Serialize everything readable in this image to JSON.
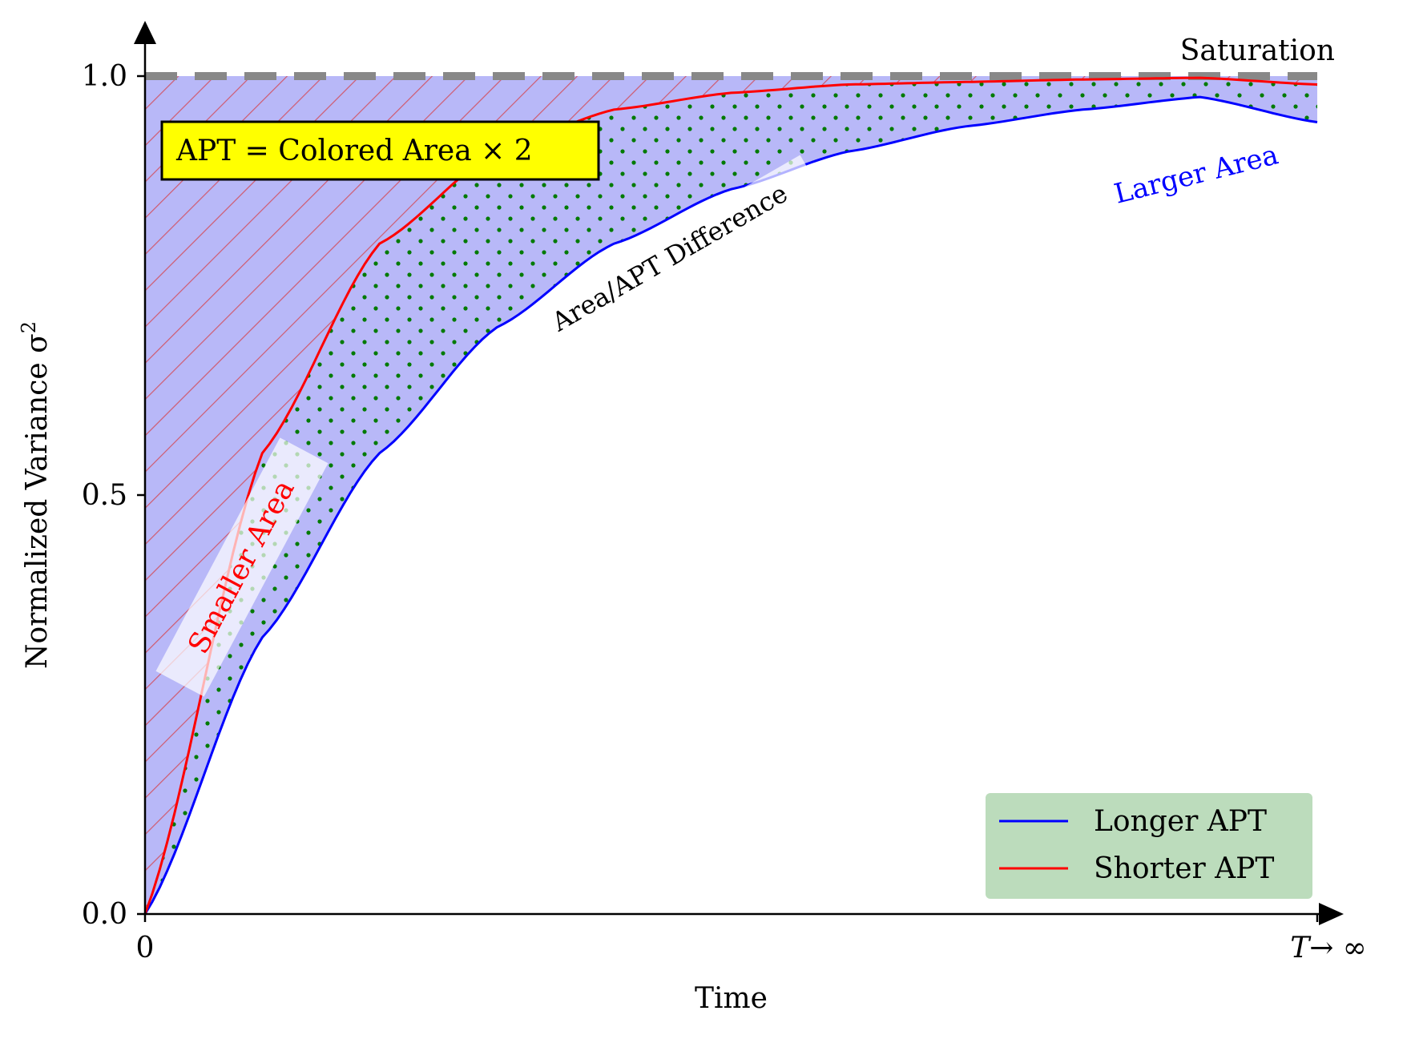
{
  "chart_data": {
    "type": "line",
    "xlabel": "Time",
    "ylabel": "Normalized Variance σ",
    "ylabel_sup": "2",
    "ylim": [
      0,
      1.0
    ],
    "xlim": [
      0,
      1
    ],
    "x_ticks": [
      {
        "value": 0,
        "label": "0"
      },
      {
        "value": 1,
        "label": "T → ∞"
      }
    ],
    "y_ticks": [
      {
        "value": 0.0,
        "label": "0.0"
      },
      {
        "value": 0.5,
        "label": "0.5"
      },
      {
        "value": 1.0,
        "label": "1.0"
      }
    ],
    "x_tick_end": {
      "italic": "T",
      "rest": "→ ∞"
    },
    "series": [
      {
        "name": "Longer APT",
        "color": "#0000ff",
        "x": [
          0,
          0.1,
          0.2,
          0.3,
          0.4,
          0.5,
          0.6,
          0.7,
          0.8,
          0.9,
          1.0
        ],
        "values": [
          0,
          0.33,
          0.55,
          0.7,
          0.8,
          0.865,
          0.91,
          0.94,
          0.96,
          0.975,
          0.945
        ]
      },
      {
        "name": "Shorter APT",
        "color": "#ff0000",
        "x": [
          0,
          0.1,
          0.2,
          0.3,
          0.4,
          0.5,
          0.6,
          0.7,
          0.8,
          0.9,
          1.0
        ],
        "values": [
          0,
          0.55,
          0.8,
          0.91,
          0.96,
          0.98,
          0.99,
          0.993,
          0.996,
          0.998,
          0.99
        ]
      }
    ],
    "saturation": {
      "value": 1.0,
      "label": "Saturation",
      "color": "#888888"
    },
    "annotations": {
      "box": "APT = Colored Area × 2",
      "smaller_area": "Smaller Area",
      "larger_area": "Larger Area",
      "difference": "Area/APT Difference"
    },
    "legend": {
      "placement": "lower-right",
      "entries": [
        "Longer APT",
        "Shorter APT"
      ]
    },
    "colors": {
      "fill": "#b8b8f8",
      "hatch": "#d05a6e",
      "dots": "#007a00",
      "box_bg": "#ffff00",
      "legend_bg": "#bcdcbc"
    }
  }
}
